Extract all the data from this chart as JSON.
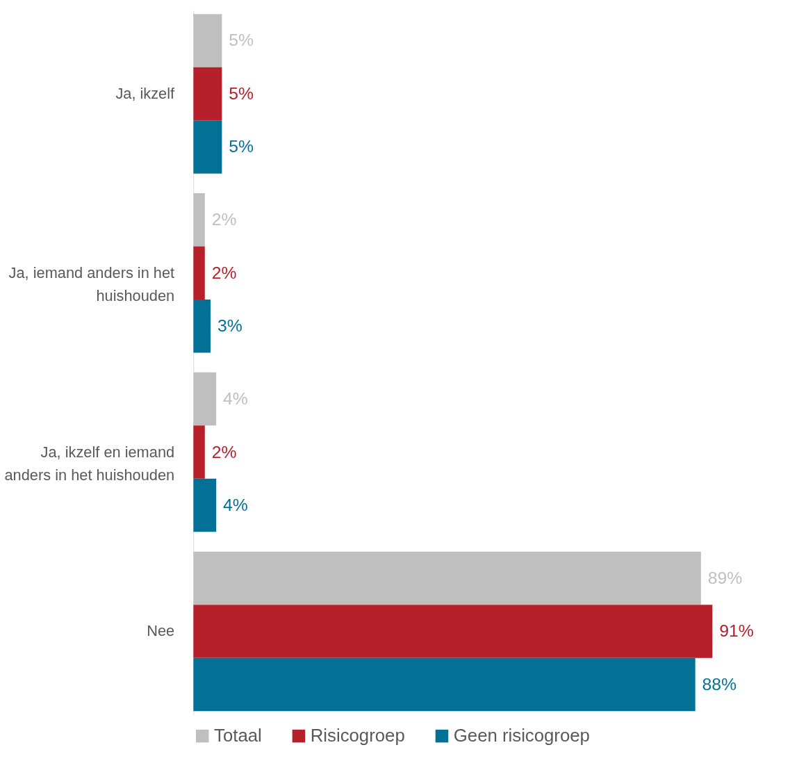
{
  "chart_data": {
    "type": "bar",
    "orientation": "horizontal",
    "categories": [
      "Ja, ikzelf",
      "Ja, iemand anders in het huishouden",
      "Ja, ikzelf en iemand anders in het huishouden",
      "Nee"
    ],
    "series": [
      {
        "name": "Totaal",
        "color": "#bfbfbf",
        "values": [
          5,
          2,
          4,
          89
        ],
        "value_labels": [
          "5%",
          "2%",
          "4%",
          "89%"
        ]
      },
      {
        "name": "Risicogroep",
        "color": "#b5202a",
        "values": [
          5,
          2,
          2,
          91
        ],
        "value_labels": [
          "5%",
          "2%",
          "2%",
          "91%"
        ]
      },
      {
        "name": "Geen risicogroep",
        "color": "#037096",
        "values": [
          5,
          3,
          4,
          88
        ],
        "value_labels": [
          "5%",
          "3%",
          "4%",
          "88%"
        ]
      }
    ],
    "legend": "bottom",
    "grid": false
  }
}
